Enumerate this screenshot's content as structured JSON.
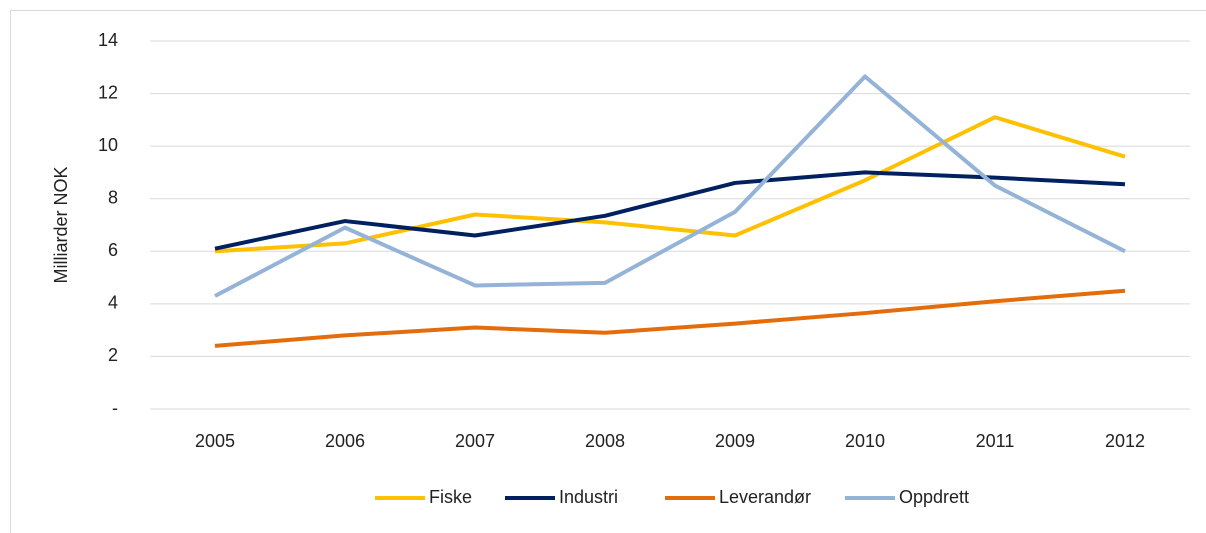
{
  "chart_data": {
    "type": "line",
    "y_label": "Milliarder NOK",
    "categories": [
      "2005",
      "2006",
      "2007",
      "2008",
      "2009",
      "2010",
      "2011",
      "2012"
    ],
    "series": [
      {
        "name": "Fiske",
        "color": "#ffc000",
        "values": [
          6.0,
          6.3,
          7.4,
          7.1,
          6.6,
          8.7,
          11.1,
          9.6
        ]
      },
      {
        "name": "Industri",
        "color": "#002060",
        "values": [
          6.1,
          7.15,
          6.6,
          7.35,
          8.6,
          9.0,
          8.8,
          8.55
        ]
      },
      {
        "name": "Leverandør",
        "color": "#e46c0a",
        "values": [
          2.4,
          2.8,
          3.1,
          2.9,
          3.25,
          3.65,
          4.1,
          4.5
        ]
      },
      {
        "name": "Oppdrett",
        "color": "#95b3d7",
        "values": [
          4.3,
          6.9,
          4.7,
          4.8,
          7.5,
          12.65,
          8.5,
          6.0
        ]
      }
    ],
    "ylim": [
      0,
      14
    ],
    "yticks": [
      {
        "value": 0,
        "label": "-"
      },
      2,
      4,
      6,
      8,
      10,
      12,
      14
    ],
    "grid": true,
    "legend": "bottom"
  }
}
